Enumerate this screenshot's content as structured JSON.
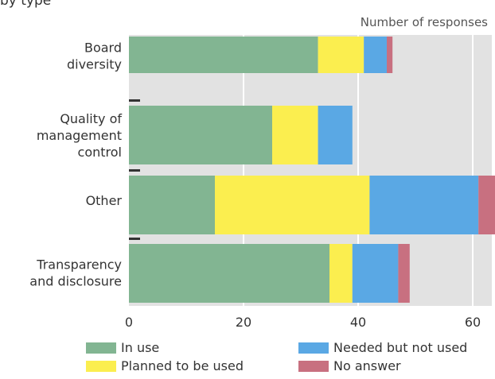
{
  "caption_fragment": "by type",
  "chart_data": {
    "type": "bar",
    "orientation": "horizontal",
    "stacked": true,
    "title": "",
    "xlabel": "Number of responses",
    "ylabel": "",
    "xlim": [
      0,
      80
    ],
    "xticks": [
      0,
      20,
      40,
      60
    ],
    "grid": true,
    "legend_position": "bottom",
    "categories": [
      [
        "Board",
        "diversity"
      ],
      [
        "Quality of",
        "management",
        "control"
      ],
      [
        "Other"
      ],
      [
        "Transparency",
        "and disclosure"
      ]
    ],
    "series": [
      {
        "name": "In use",
        "color": "#82b592",
        "values": [
          33,
          25,
          15,
          35
        ]
      },
      {
        "name": "Planned to be used",
        "color": "#fbee4f",
        "values": [
          8,
          8,
          27,
          4
        ]
      },
      {
        "name": "Needed but not used",
        "color": "#5aa8e4",
        "values": [
          4,
          6,
          19,
          8
        ]
      },
      {
        "name": "No answer",
        "color": "#c87080",
        "values": [
          1,
          0,
          5,
          2
        ]
      }
    ],
    "background_colors": {
      "plot": "#e2e2e2",
      "gridline": "#ffffff"
    }
  }
}
